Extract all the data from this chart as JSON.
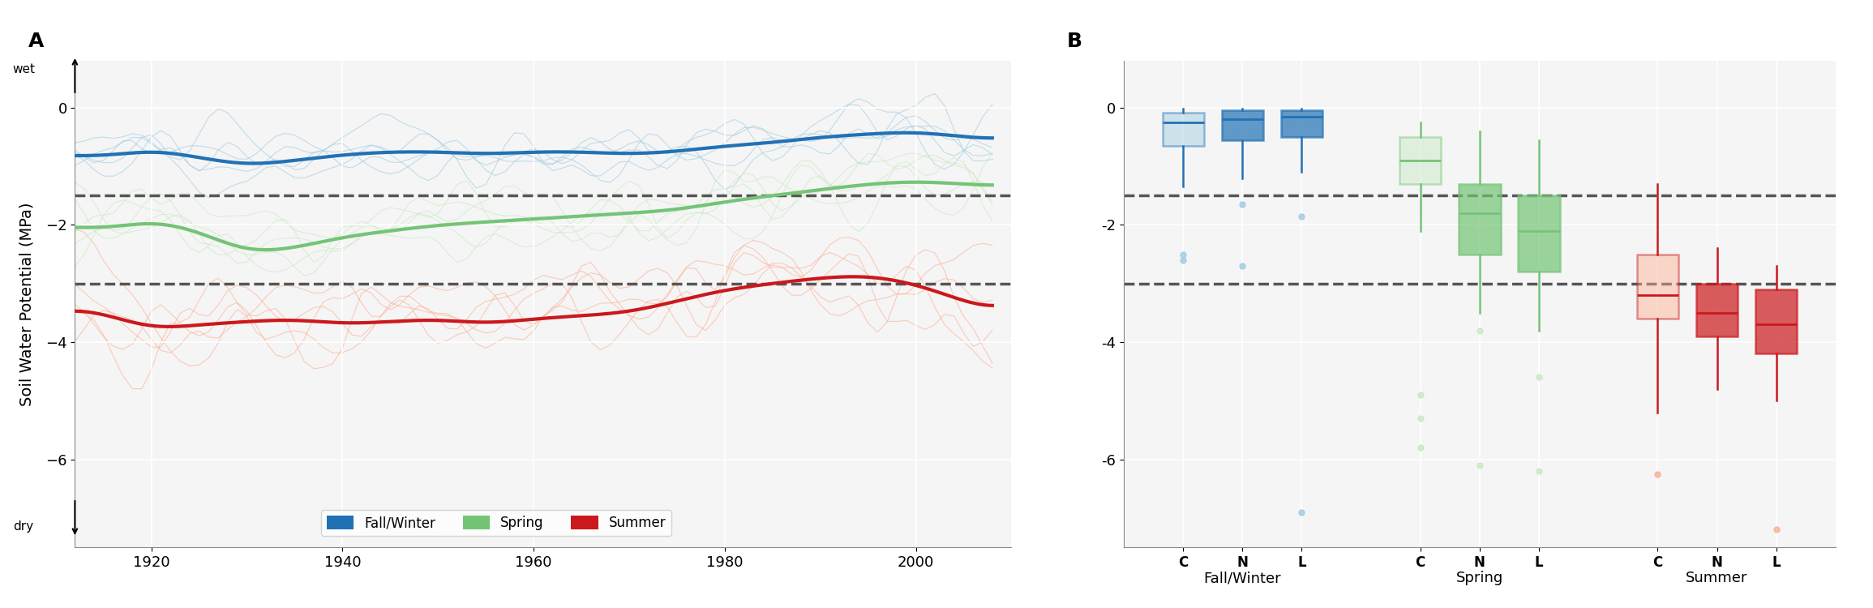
{
  "title_left": "A",
  "title_right": "B",
  "ylabel": "Soil Water Potential (MPa)",
  "years": [
    1912,
    2008
  ],
  "ylim_left": [
    -7.5,
    0.8
  ],
  "ylim_right": [
    -7.5,
    0.8
  ],
  "yticks": [
    0,
    -2,
    -4,
    -6
  ],
  "hlines": [
    -1.5,
    -3.0
  ],
  "colors": {
    "fall_winter": "#2171b5",
    "fall_winter_light": "#9ecae1",
    "spring": "#74c476",
    "spring_light": "#c7e9c0",
    "summer": "#cb181d",
    "summer_light": "#fcae91"
  },
  "legend_labels": [
    "Fall/Winter",
    "Spring",
    "Summer"
  ],
  "season_labels": [
    "Fall/Winter",
    "Spring",
    "Summer"
  ],
  "box_group_labels": [
    "C",
    "N",
    "L"
  ],
  "box_data": {
    "fall_winter": {
      "C": {
        "q1": -0.65,
        "median": -0.25,
        "q3": -0.08,
        "whislo": -1.35,
        "whishi": -0.02,
        "fliers": [
          -2.5,
          -2.6
        ]
      },
      "N": {
        "q1": -0.55,
        "median": -0.2,
        "q3": -0.05,
        "whislo": -1.2,
        "whishi": -0.01,
        "fliers": [
          -1.65,
          -2.7
        ]
      },
      "L": {
        "q1": -0.5,
        "median": -0.15,
        "q3": -0.05,
        "whislo": -1.1,
        "whishi": -0.01,
        "fliers": [
          -1.85,
          -6.9
        ]
      }
    },
    "spring": {
      "C": {
        "q1": -1.3,
        "median": -0.9,
        "q3": -0.5,
        "whislo": -2.1,
        "whishi": -0.25,
        "fliers": [
          -4.9,
          -5.3,
          -5.8
        ]
      },
      "N": {
        "q1": -2.5,
        "median": -1.8,
        "q3": -1.3,
        "whislo": -3.5,
        "whishi": -0.4,
        "fliers": [
          -3.8,
          -6.1
        ]
      },
      "L": {
        "q1": -2.8,
        "median": -2.1,
        "q3": -1.5,
        "whislo": -3.8,
        "whishi": -0.55,
        "fliers": [
          -4.6,
          -6.2
        ]
      }
    },
    "summer": {
      "C": {
        "q1": -3.6,
        "median": -3.2,
        "q3": -2.5,
        "whislo": -5.2,
        "whishi": -1.3,
        "fliers": [
          -6.25
        ]
      },
      "N": {
        "q1": -3.9,
        "median": -3.5,
        "q3": -3.0,
        "whislo": -4.8,
        "whishi": -2.4,
        "fliers": []
      },
      "L": {
        "q1": -4.2,
        "median": -3.7,
        "q3": -3.1,
        "whislo": -5.0,
        "whishi": -2.7,
        "fliers": [
          -7.2
        ]
      }
    }
  },
  "line_data": {
    "fall_winter_mean": {
      "x": [
        1912,
        1915,
        1920,
        1925,
        1930,
        1935,
        1940,
        1945,
        1950,
        1955,
        1960,
        1965,
        1970,
        1975,
        1980,
        1985,
        1990,
        1995,
        2000,
        2005,
        2008
      ],
      "y": [
        -0.8,
        -0.85,
        -0.7,
        -0.85,
        -1.0,
        -0.9,
        -0.8,
        -0.75,
        -0.75,
        -0.8,
        -0.75,
        -0.75,
        -0.8,
        -0.75,
        -0.65,
        -0.6,
        -0.5,
        -0.45,
        -0.4,
        -0.5,
        -0.55
      ]
    },
    "spring_mean": {
      "x": [
        1912,
        1915,
        1920,
        1925,
        1930,
        1935,
        1940,
        1945,
        1950,
        1955,
        1960,
        1965,
        1970,
        1975,
        1980,
        1985,
        1990,
        1995,
        2000,
        2005,
        2008
      ],
      "y": [
        -2.0,
        -2.1,
        -1.9,
        -2.1,
        -2.5,
        -2.4,
        -2.2,
        -2.1,
        -2.0,
        -1.95,
        -1.9,
        -1.85,
        -1.8,
        -1.75,
        -1.6,
        -1.5,
        -1.4,
        -1.3,
        -1.25,
        -1.3,
        -1.35
      ]
    },
    "summer_mean": {
      "x": [
        1912,
        1915,
        1920,
        1925,
        1930,
        1935,
        1940,
        1945,
        1950,
        1955,
        1960,
        1965,
        1970,
        1975,
        1980,
        1985,
        1990,
        1995,
        2000,
        2005,
        2008
      ],
      "y": [
        -3.4,
        -3.5,
        -3.8,
        -3.7,
        -3.65,
        -3.6,
        -3.7,
        -3.65,
        -3.6,
        -3.7,
        -3.6,
        -3.55,
        -3.5,
        -3.3,
        -3.1,
        -3.0,
        -2.9,
        -2.85,
        -3.0,
        -3.3,
        -3.5
      ]
    }
  }
}
